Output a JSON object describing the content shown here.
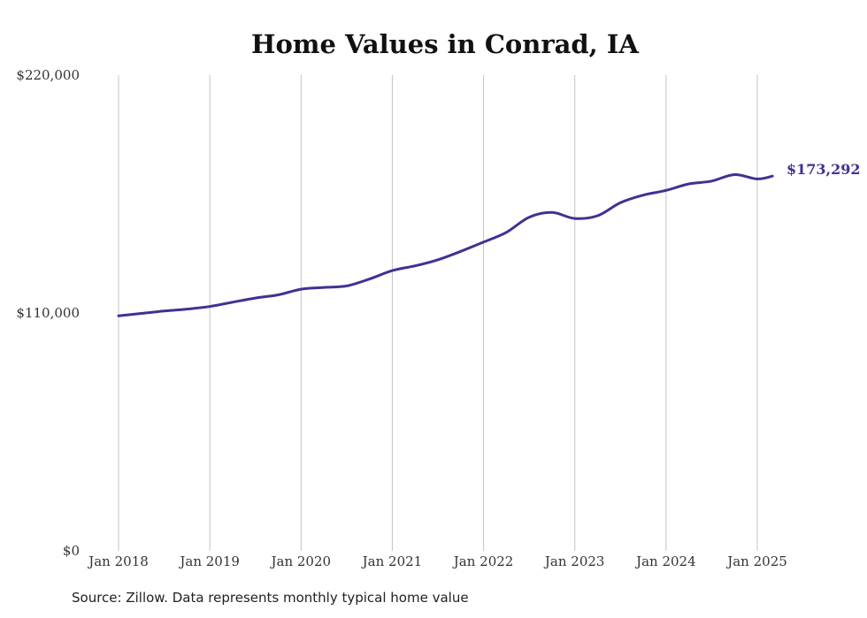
{
  "chart_data": {
    "type": "line",
    "title": "Home Values in Conrad, IA",
    "xlabel": "",
    "ylabel": "",
    "ylim": [
      0,
      220000
    ],
    "y_ticks": [
      "$0",
      "$110,000",
      "$220,000"
    ],
    "x_ticks": [
      "Jan 2018",
      "Jan 2019",
      "Jan 2020",
      "Jan 2021",
      "Jan 2022",
      "Jan 2023",
      "Jan 2024",
      "Jan 2025"
    ],
    "grid": {
      "vertical": true,
      "horizontal": false
    },
    "legend": "none",
    "end_label": "$173,292",
    "series": [
      {
        "color": "#3f3293",
        "x": [
          "2018-01",
          "2018-04",
          "2018-07",
          "2018-10",
          "2019-01",
          "2019-04",
          "2019-07",
          "2019-10",
          "2020-01",
          "2020-04",
          "2020-07",
          "2020-10",
          "2021-01",
          "2021-04",
          "2021-07",
          "2021-10",
          "2022-01",
          "2022-04",
          "2022-07",
          "2022-10",
          "2023-01",
          "2023-04",
          "2023-07",
          "2023-10",
          "2024-01",
          "2024-04",
          "2024-07",
          "2024-10",
          "2025-01",
          "2025-03"
        ],
        "values": [
          108700,
          109800,
          110900,
          111800,
          113000,
          115000,
          116900,
          118400,
          121000,
          121800,
          122500,
          125700,
          129600,
          131800,
          134600,
          138500,
          142800,
          147300,
          154300,
          156500,
          153700,
          155000,
          161000,
          164500,
          166700,
          169700,
          171000,
          174000,
          172000,
          173292
        ]
      }
    ]
  },
  "source_note": "Source: Zillow. Data represents monthly typical home value"
}
